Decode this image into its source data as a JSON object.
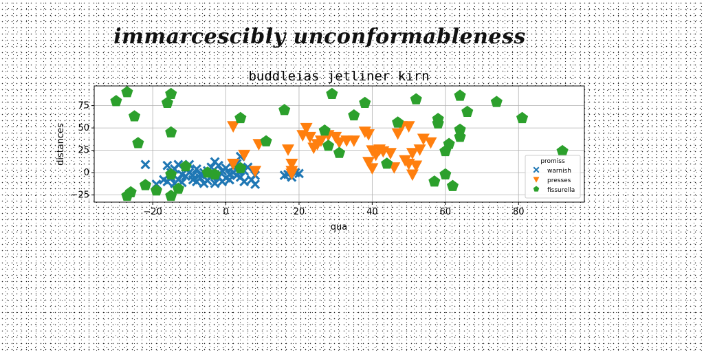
{
  "figure": {
    "suptitle": "immarcescibly unconformableness"
  },
  "chart_data": {
    "type": "scatter",
    "title": "buddleias jetliner kirn",
    "xlabel": "qua",
    "ylabel": "distances",
    "xlim": [
      -36,
      98
    ],
    "ylim": [
      -33,
      97
    ],
    "xticks": [
      -20,
      0,
      20,
      40,
      60,
      80
    ],
    "yticks": [
      -25,
      0,
      25,
      50,
      75
    ],
    "grid": true,
    "legend": {
      "title": "promiss",
      "position": "lower-right"
    },
    "series": [
      {
        "name": "warnish",
        "marker": "x-filled",
        "color": "#1f77b4",
        "points": [
          [
            -22,
            9
          ],
          [
            -19,
            -13
          ],
          [
            -17,
            -8
          ],
          [
            -16,
            -10
          ],
          [
            -16,
            8
          ],
          [
            -15,
            -5
          ],
          [
            -15,
            0
          ],
          [
            -14,
            -12
          ],
          [
            -14,
            4
          ],
          [
            -13,
            -8
          ],
          [
            -13,
            9
          ],
          [
            -12,
            -2
          ],
          [
            -12,
            -11
          ],
          [
            -11,
            6
          ],
          [
            -11,
            -4
          ],
          [
            -10,
            0
          ],
          [
            -10,
            9
          ],
          [
            -9,
            -8
          ],
          [
            -9,
            -3
          ],
          [
            -8,
            4
          ],
          [
            -8,
            -10
          ],
          [
            -7,
            -2
          ],
          [
            -7,
            -6
          ],
          [
            -6,
            0
          ],
          [
            -6,
            -12
          ],
          [
            -5,
            2
          ],
          [
            -5,
            -9
          ],
          [
            -4,
            -4
          ],
          [
            -4,
            6
          ],
          [
            -3,
            -2
          ],
          [
            -3,
            12
          ],
          [
            -3,
            -12
          ],
          [
            -2,
            8
          ],
          [
            -2,
            -5
          ],
          [
            -1,
            -10
          ],
          [
            -1,
            2
          ],
          [
            0,
            -6
          ],
          [
            0,
            5
          ],
          [
            1,
            -2
          ],
          [
            1,
            -8
          ],
          [
            2,
            0
          ],
          [
            2,
            6
          ],
          [
            3,
            -3
          ],
          [
            3,
            10
          ],
          [
            4,
            -5
          ],
          [
            4,
            18
          ],
          [
            5,
            2
          ],
          [
            5,
            -10
          ],
          [
            6,
            6
          ],
          [
            7,
            -8
          ],
          [
            8,
            -13
          ],
          [
            8,
            -3
          ],
          [
            16,
            -3
          ],
          [
            17,
            -2
          ],
          [
            18,
            -5
          ],
          [
            19,
            0
          ],
          [
            20,
            -1
          ]
        ]
      },
      {
        "name": "presses",
        "marker": "triangle-down",
        "color": "#ff7f0e",
        "points": [
          [
            2,
            52
          ],
          [
            2,
            10
          ],
          [
            5,
            20
          ],
          [
            8,
            2
          ],
          [
            9,
            32
          ],
          [
            17,
            26
          ],
          [
            18,
            10
          ],
          [
            18,
            2
          ],
          [
            18,
            -1
          ],
          [
            21,
            42
          ],
          [
            22,
            50
          ],
          [
            23,
            40
          ],
          [
            24,
            28
          ],
          [
            25,
            32
          ],
          [
            26,
            36
          ],
          [
            28,
            42
          ],
          [
            30,
            40
          ],
          [
            31,
            34
          ],
          [
            33,
            36
          ],
          [
            35,
            36
          ],
          [
            38,
            46
          ],
          [
            39,
            43
          ],
          [
            39,
            12
          ],
          [
            40,
            5
          ],
          [
            40,
            25
          ],
          [
            41,
            20
          ],
          [
            42,
            26
          ],
          [
            43,
            24
          ],
          [
            45,
            22
          ],
          [
            46,
            6
          ],
          [
            47,
            44
          ],
          [
            48,
            52
          ],
          [
            49,
            14
          ],
          [
            50,
            10
          ],
          [
            50,
            52
          ],
          [
            51,
            22
          ],
          [
            51,
            -2
          ],
          [
            52,
            8
          ],
          [
            53,
            26
          ],
          [
            54,
            38
          ],
          [
            56,
            34
          ]
        ]
      },
      {
        "name": "fissurella",
        "marker": "pentagon",
        "color": "#2ca02c",
        "points": [
          [
            -30,
            80
          ],
          [
            -27,
            -26
          ],
          [
            -27,
            90
          ],
          [
            -26,
            -22
          ],
          [
            -25,
            63
          ],
          [
            -24,
            33
          ],
          [
            -22,
            -14
          ],
          [
            -19,
            -20
          ],
          [
            -16,
            78
          ],
          [
            -15,
            -2
          ],
          [
            -15,
            88
          ],
          [
            -15,
            45
          ],
          [
            -15,
            -26
          ],
          [
            -13,
            -18
          ],
          [
            -11,
            7
          ],
          [
            -5,
            0
          ],
          [
            -3,
            -2
          ],
          [
            4,
            5
          ],
          [
            4,
            61
          ],
          [
            11,
            35
          ],
          [
            16,
            70
          ],
          [
            27,
            47
          ],
          [
            28,
            30
          ],
          [
            29,
            88
          ],
          [
            31,
            22
          ],
          [
            35,
            64
          ],
          [
            38,
            78
          ],
          [
            44,
            10
          ],
          [
            47,
            56
          ],
          [
            52,
            82
          ],
          [
            57,
            -10
          ],
          [
            58,
            60
          ],
          [
            58,
            55
          ],
          [
            60,
            -2
          ],
          [
            60,
            24
          ],
          [
            61,
            32
          ],
          [
            62,
            -15
          ],
          [
            64,
            40
          ],
          [
            64,
            48
          ],
          [
            64,
            86
          ],
          [
            66,
            68
          ],
          [
            74,
            79
          ],
          [
            81,
            61
          ],
          [
            92,
            24
          ]
        ]
      }
    ]
  }
}
